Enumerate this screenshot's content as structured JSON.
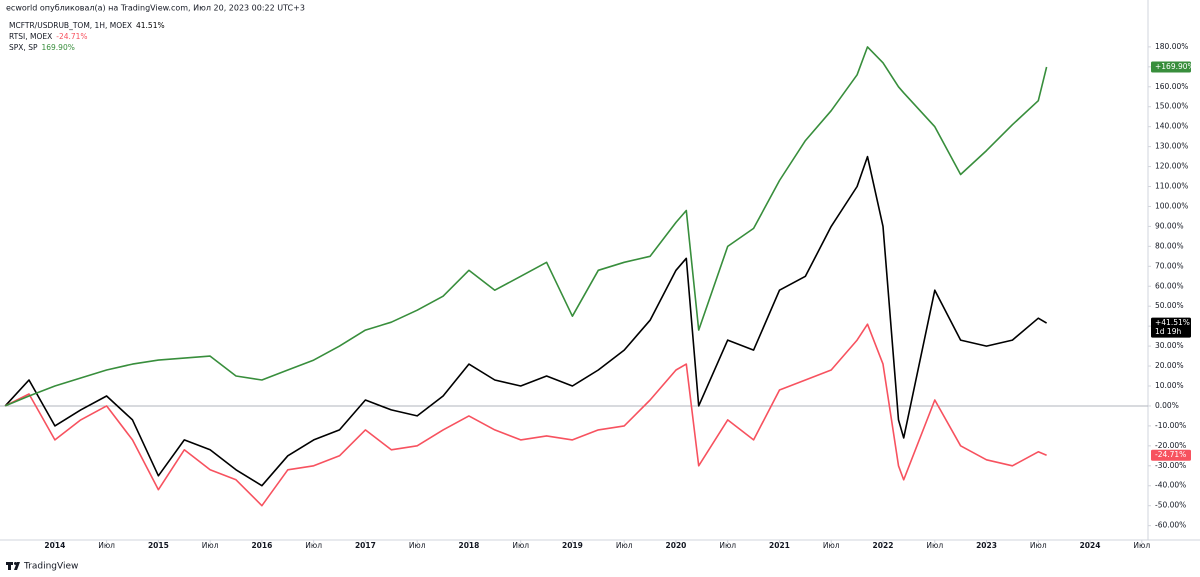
{
  "header": "ecworld опубликовал(а) на TradingView.com, Июл 20, 2023 00:22 UTC+3",
  "footer": "TradingView",
  "chart_data": {
    "type": "line",
    "x": [
      2013.52,
      2013.75,
      2014,
      2014.25,
      2014.5,
      2014.75,
      2015,
      2015.25,
      2015.5,
      2015.75,
      2016,
      2016.25,
      2016.5,
      2016.75,
      2017,
      2017.25,
      2017.5,
      2017.75,
      2018,
      2018.25,
      2018.5,
      2018.75,
      2019,
      2019.25,
      2019.5,
      2019.75,
      2020,
      2020.1,
      2020.22,
      2020.5,
      2020.75,
      2021,
      2021.25,
      2021.5,
      2021.75,
      2021.85,
      2022,
      2022.15,
      2022.2,
      2022.5,
      2022.75,
      2023,
      2023.25,
      2023.5,
      2023.58
    ],
    "series": [
      {
        "name": "MCFTR/USDRUB_TOM, 1H, MOEX",
        "legend_value": "41.51%",
        "last_value_label": "+41.51%",
        "countdown": "1d 19h",
        "color": "#000000",
        "values": [
          0,
          13,
          -10,
          -2,
          5,
          -7,
          -35,
          -17,
          -22,
          -32,
          -40,
          -25,
          -17,
          -12,
          3,
          -2,
          -5,
          5,
          21,
          13,
          10,
          15,
          10,
          18,
          28,
          43,
          68,
          74,
          0,
          33,
          28,
          58,
          65,
          90,
          110,
          125,
          90,
          -7,
          -16,
          58,
          33,
          30,
          33,
          44,
          41.51
        ]
      },
      {
        "name": "RTSI, MOEX",
        "legend_value": "-24.71%",
        "last_value_label": "-24.71%",
        "color": "#f7525f",
        "values": [
          0,
          6,
          -17,
          -7,
          0,
          -17,
          -42,
          -22,
          -32,
          -37,
          -50,
          -32,
          -30,
          -25,
          -12,
          -22,
          -20,
          -12,
          -5,
          -12,
          -17,
          -15,
          -17,
          -12,
          -10,
          3,
          18,
          21,
          -30,
          -7,
          -17,
          8,
          13,
          18,
          33,
          41,
          21,
          -30,
          -37,
          3,
          -20,
          -27,
          -30,
          -23,
          -24.71
        ]
      },
      {
        "name": "SPX, SP",
        "legend_value": "169.90%",
        "last_value_label": "+169.90%",
        "color": "#388e3c",
        "values": [
          0,
          5,
          10,
          14,
          18,
          21,
          23,
          24,
          25,
          15,
          13,
          18,
          23,
          30,
          38,
          42,
          48,
          55,
          68,
          58,
          65,
          72,
          45,
          68,
          72,
          75,
          92,
          98,
          38,
          80,
          89,
          113,
          133,
          148,
          166,
          180,
          172,
          160,
          157,
          140,
          116,
          128,
          141,
          153,
          169.9
        ]
      }
    ],
    "xlim": [
      2013.47,
      2024.56
    ],
    "xticks": [
      {
        "value": 2014,
        "label": "2014"
      },
      {
        "value": 2014.5,
        "label": "Июл"
      },
      {
        "value": 2015,
        "label": "2015"
      },
      {
        "value": 2015.5,
        "label": "Июл"
      },
      {
        "value": 2016,
        "label": "2016"
      },
      {
        "value": 2016.5,
        "label": "Июл"
      },
      {
        "value": 2017,
        "label": "2017"
      },
      {
        "value": 2017.5,
        "label": "Июл"
      },
      {
        "value": 2018,
        "label": "2018"
      },
      {
        "value": 2018.5,
        "label": "Июл"
      },
      {
        "value": 2019,
        "label": "2019"
      },
      {
        "value": 2019.5,
        "label": "Июл"
      },
      {
        "value": 2020,
        "label": "2020"
      },
      {
        "value": 2020.5,
        "label": "Июл"
      },
      {
        "value": 2021,
        "label": "2021"
      },
      {
        "value": 2021.5,
        "label": "Июл"
      },
      {
        "value": 2022,
        "label": "2022"
      },
      {
        "value": 2022.5,
        "label": "Июл"
      },
      {
        "value": 2023,
        "label": "2023"
      },
      {
        "value": 2023.5,
        "label": "Июл"
      },
      {
        "value": 2024,
        "label": "2024"
      },
      {
        "value": 2024.5,
        "label": "Июл"
      }
    ],
    "ylim": [
      -67.2,
      203.5
    ],
    "yticks": [
      {
        "value": -60,
        "label": "-60.00%"
      },
      {
        "value": -50,
        "label": "-50.00%"
      },
      {
        "value": -40,
        "label": "-40.00%"
      },
      {
        "value": -30,
        "label": "-30.00%"
      },
      {
        "value": -20,
        "label": "-20.00%"
      },
      {
        "value": -10,
        "label": "-10.00%"
      },
      {
        "value": 0,
        "label": "0.00%"
      },
      {
        "value": 10,
        "label": "10.00%"
      },
      {
        "value": 20,
        "label": "20.00%"
      },
      {
        "value": 30,
        "label": "30.00%"
      },
      {
        "value": 40,
        "label": "40.00%"
      },
      {
        "value": 50,
        "label": "50.00%"
      },
      {
        "value": 60,
        "label": "60.00%"
      },
      {
        "value": 70,
        "label": "70.00%"
      },
      {
        "value": 80,
        "label": "80.00%"
      },
      {
        "value": 90,
        "label": "90.00%"
      },
      {
        "value": 100,
        "label": "100.00%"
      },
      {
        "value": 110,
        "label": "110.00%"
      },
      {
        "value": 120,
        "label": "120.00%"
      },
      {
        "value": 130,
        "label": "130.00%"
      },
      {
        "value": 140,
        "label": "140.00%"
      },
      {
        "value": 150,
        "label": "150.00%"
      },
      {
        "value": 160,
        "label": "160.00%"
      },
      {
        "value": 170,
        "label": "170.00%"
      },
      {
        "value": 180,
        "label": "180.00%"
      }
    ],
    "grid": false,
    "zero_line": true
  }
}
